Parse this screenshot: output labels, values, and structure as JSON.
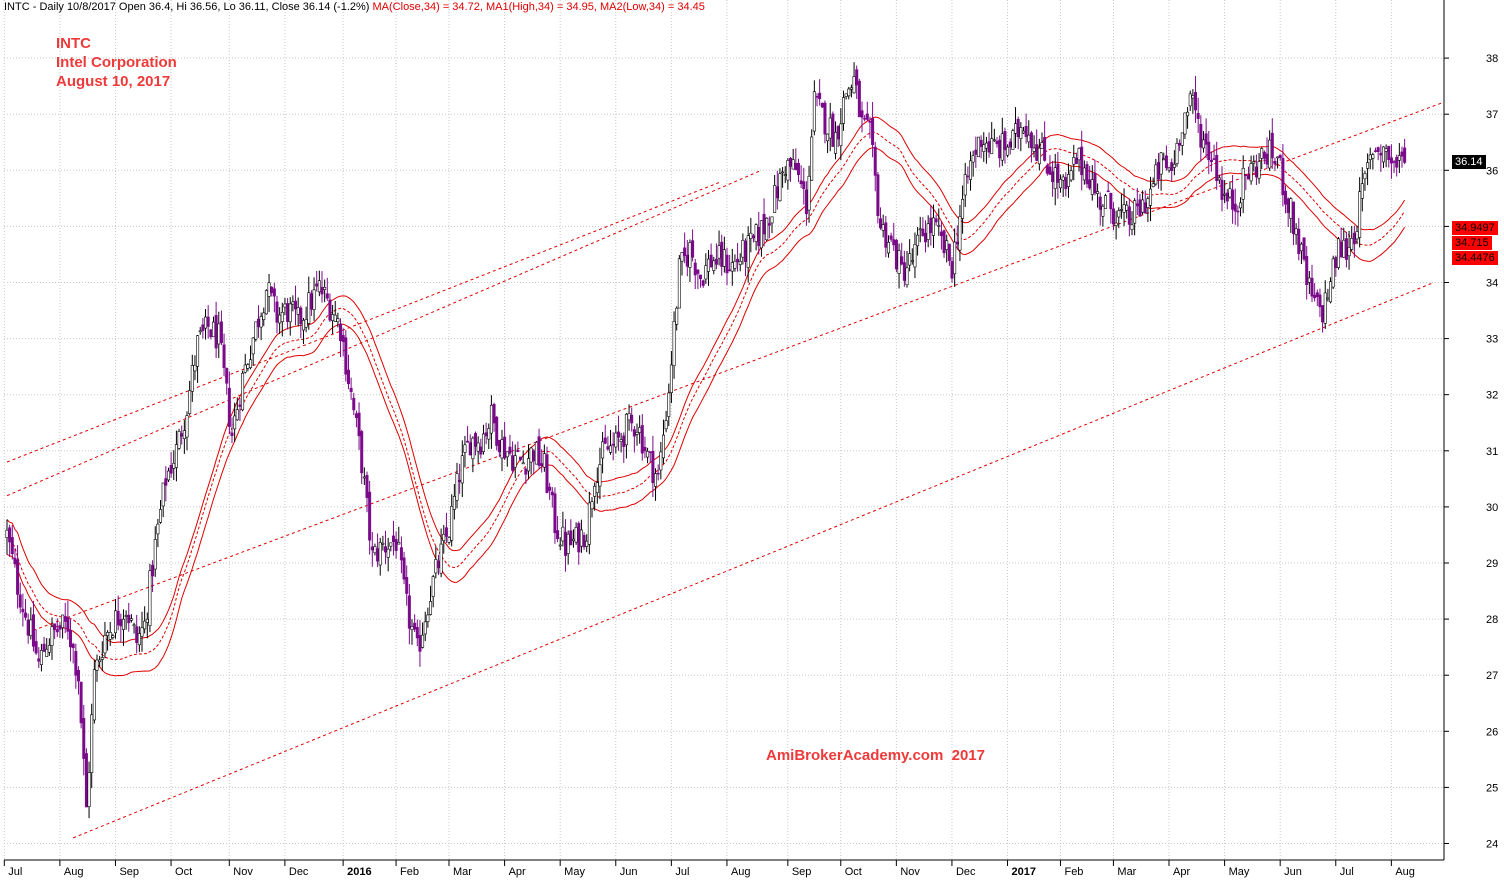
{
  "header": {
    "prefix": "INTC - Daily 10/8/2017 Open 36.4, Hi 36.56, Lo 36.11, Close 36.14 (-1.2%)",
    "ma": "MA(Close,34) = 34.72,",
    "ma1": "MA1(High,34) = 34.95,",
    "ma2": "MA2(Low,34) = 34.45",
    "colors": {
      "base": "#000000",
      "ma": "#e00000"
    }
  },
  "symbol_box": {
    "ticker": "INTC",
    "name": "Intel Corporation",
    "date": "August 10, 2017"
  },
  "watermark": "AmiBrokerAcademy.com  2017",
  "price_tags": {
    "last": "36.14",
    "ma1": "34.9497",
    "ma": "34.715",
    "ma2": "34.4476"
  },
  "colors": {
    "up_candle": "#000000",
    "down_candle": "#7a0a8a",
    "ma_line": "#e00000",
    "channel": "#e00000",
    "grid": "#c8c8c8",
    "tag_red": "#ff0000"
  },
  "chart_data": {
    "type": "candlestick",
    "title": "INTC",
    "subtitle": "Intel Corporation",
    "ylim": [
      23.8,
      38.3
    ],
    "yticks": [
      24,
      25,
      26,
      27,
      28,
      29,
      30,
      31,
      32,
      33,
      34,
      35,
      36,
      37,
      38
    ],
    "xticks": [
      {
        "label": "Jul",
        "i": 2
      },
      {
        "label": "Aug",
        "i": 23
      },
      {
        "label": "Sep",
        "i": 44
      },
      {
        "label": "Oct",
        "i": 65
      },
      {
        "label": "Nov",
        "i": 87
      },
      {
        "label": "Dec",
        "i": 108
      },
      {
        "label": "2016",
        "i": 130,
        "bold": true
      },
      {
        "label": "Feb",
        "i": 150
      },
      {
        "label": "Mar",
        "i": 170
      },
      {
        "label": "Apr",
        "i": 191
      },
      {
        "label": "May",
        "i": 212
      },
      {
        "label": "Jun",
        "i": 233
      },
      {
        "label": "Jul",
        "i": 254
      },
      {
        "label": "Aug",
        "i": 275
      },
      {
        "label": "Sep",
        "i": 298
      },
      {
        "label": "Oct",
        "i": 318
      },
      {
        "label": "Nov",
        "i": 339
      },
      {
        "label": "Dec",
        "i": 360
      },
      {
        "label": "2017",
        "i": 381,
        "bold": true
      },
      {
        "label": "Feb",
        "i": 401
      },
      {
        "label": "Mar",
        "i": 421
      },
      {
        "label": "Apr",
        "i": 442
      },
      {
        "label": "May",
        "i": 463
      },
      {
        "label": "Jun",
        "i": 484
      },
      {
        "label": "Jul",
        "i": 505
      },
      {
        "label": "Aug",
        "i": 526
      }
    ],
    "n_bars": 529,
    "anchors": [
      [
        0,
        29.5
      ],
      [
        4,
        28.6
      ],
      [
        8,
        27.9
      ],
      [
        12,
        27.2
      ],
      [
        15,
        27.6
      ],
      [
        19,
        27.8
      ],
      [
        23,
        27.9
      ],
      [
        27,
        27.0
      ],
      [
        30,
        24.6
      ],
      [
        33,
        27.0
      ],
      [
        37,
        27.7
      ],
      [
        41,
        28.0
      ],
      [
        45,
        28.2
      ],
      [
        49,
        27.6
      ],
      [
        52,
        27.9
      ],
      [
        56,
        29.3
      ],
      [
        60,
        30.5
      ],
      [
        64,
        31.0
      ],
      [
        68,
        31.8
      ],
      [
        72,
        32.9
      ],
      [
        76,
        33.2
      ],
      [
        80,
        33.0
      ],
      [
        85,
        31.3
      ],
      [
        89,
        32.3
      ],
      [
        94,
        33.2
      ],
      [
        98,
        33.9
      ],
      [
        102,
        33.4
      ],
      [
        106,
        33.5
      ],
      [
        110,
        33.3
      ],
      [
        114,
        33.6
      ],
      [
        118,
        33.9
      ],
      [
        122,
        33.6
      ],
      [
        126,
        33.2
      ],
      [
        130,
        32.0
      ],
      [
        134,
        30.8
      ],
      [
        138,
        29.1
      ],
      [
        142,
        29.3
      ],
      [
        147,
        29.4
      ],
      [
        151,
        28.2
      ],
      [
        155,
        27.4
      ],
      [
        159,
        28.3
      ],
      [
        163,
        29.0
      ],
      [
        167,
        29.6
      ],
      [
        171,
        30.6
      ],
      [
        175,
        31.2
      ],
      [
        179,
        31.2
      ],
      [
        183,
        31.6
      ],
      [
        187,
        31.1
      ],
      [
        191,
        30.9
      ],
      [
        195,
        30.8
      ],
      [
        199,
        31.0
      ],
      [
        203,
        30.7
      ],
      [
        207,
        29.7
      ],
      [
        211,
        29.3
      ],
      [
        215,
        29.4
      ],
      [
        219,
        29.6
      ],
      [
        222,
        30.6
      ],
      [
        226,
        31.0
      ],
      [
        230,
        31.1
      ],
      [
        234,
        31.4
      ],
      [
        238,
        31.5
      ],
      [
        242,
        30.9
      ],
      [
        246,
        30.5
      ],
      [
        250,
        32.1
      ],
      [
        254,
        34.2
      ],
      [
        258,
        34.6
      ],
      [
        262,
        34.1
      ],
      [
        266,
        34.4
      ],
      [
        270,
        34.4
      ],
      [
        274,
        34.3
      ],
      [
        278,
        34.5
      ],
      [
        282,
        34.7
      ],
      [
        286,
        35.0
      ],
      [
        290,
        35.5
      ],
      [
        294,
        36.1
      ],
      [
        298,
        36.0
      ],
      [
        302,
        35.4
      ],
      [
        305,
        37.2
      ],
      [
        309,
        36.9
      ],
      [
        313,
        36.6
      ],
      [
        317,
        37.4
      ],
      [
        320,
        37.6
      ],
      [
        323,
        36.8
      ],
      [
        326,
        36.6
      ],
      [
        330,
        35.0
      ],
      [
        334,
        34.7
      ],
      [
        338,
        34.2
      ],
      [
        342,
        34.4
      ],
      [
        346,
        34.9
      ],
      [
        350,
        35.0
      ],
      [
        354,
        34.6
      ],
      [
        357,
        34.3
      ],
      [
        360,
        35.2
      ],
      [
        364,
        36.1
      ],
      [
        368,
        36.6
      ],
      [
        372,
        36.4
      ],
      [
        376,
        36.4
      ],
      [
        380,
        36.5
      ],
      [
        384,
        36.9
      ],
      [
        388,
        36.5
      ],
      [
        392,
        36.2
      ],
      [
        396,
        35.9
      ],
      [
        400,
        35.6
      ],
      [
        404,
        36.2
      ],
      [
        408,
        36.0
      ],
      [
        412,
        35.5
      ],
      [
        416,
        35.4
      ],
      [
        420,
        35.2
      ],
      [
        424,
        35.1
      ],
      [
        428,
        35.3
      ],
      [
        432,
        35.6
      ],
      [
        436,
        36.1
      ],
      [
        440,
        36.0
      ],
      [
        444,
        36.9
      ],
      [
        448,
        37.2
      ],
      [
        452,
        36.5
      ],
      [
        456,
        36.2
      ],
      [
        460,
        35.5
      ],
      [
        464,
        35.4
      ],
      [
        468,
        35.9
      ],
      [
        472,
        36.1
      ],
      [
        476,
        36.3
      ],
      [
        480,
        36.2
      ],
      [
        484,
        35.4
      ],
      [
        488,
        34.7
      ],
      [
        491,
        34.0
      ],
      [
        494,
        33.6
      ],
      [
        497,
        33.5
      ],
      [
        500,
        34.0
      ],
      [
        503,
        34.6
      ],
      [
        506,
        34.6
      ],
      [
        509,
        34.9
      ],
      [
        512,
        35.6
      ],
      [
        516,
        36.4
      ],
      [
        520,
        36.4
      ],
      [
        524,
        36.1
      ],
      [
        528,
        36.14
      ]
    ],
    "ma_period": 34,
    "last_bar": {
      "open": 36.4,
      "high": 36.56,
      "low": 36.11,
      "close": 36.14
    },
    "ma_values": {
      "close": 34.72,
      "high": 34.95,
      "low": 34.45
    },
    "channel_lines": [
      {
        "x1": 0,
        "y1": 30.2,
        "x2": 285,
        "y2": 36.0
      },
      {
        "x1": 0,
        "y1": 30.8,
        "x2": 270,
        "y2": 35.8
      },
      {
        "x1": 10,
        "y1": 27.8,
        "x2": 542,
        "y2": 37.2
      },
      {
        "x1": 25,
        "y1": 24.1,
        "x2": 539,
        "y2": 34.0
      }
    ]
  }
}
